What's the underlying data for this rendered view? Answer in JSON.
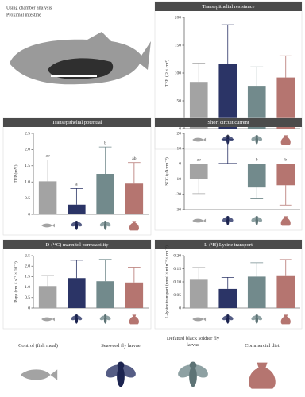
{
  "header": {
    "lines": [
      "Using chamber analysis",
      "Proximal intestine"
    ]
  },
  "legend": {
    "labels": [
      "Control (fish meal)",
      "Seaweed fly larvae",
      "Defatted black soldier fly larvae",
      "Commercial diet"
    ]
  },
  "chart_data": [
    {
      "type": "bar",
      "title": "Transepithelial resistance",
      "ylabel": "TER (Ω × cm²)",
      "categories": [
        null,
        null,
        null,
        null
      ],
      "values": [
        84,
        117,
        77,
        92
      ],
      "errors": [
        34,
        70,
        34,
        39
      ],
      "colors": [
        "#a3a3a3",
        "#2b3466",
        "#728a8c",
        "#b57570"
      ],
      "ylim": [
        0,
        200
      ],
      "yticks": [
        0,
        50,
        100,
        150,
        200
      ]
    },
    {
      "type": "bar",
      "title": "Transepithelial potential",
      "ylabel": "TEP (mV)",
      "categories": [
        null,
        null,
        null,
        null
      ],
      "values": [
        1.02,
        0.3,
        1.25,
        0.95
      ],
      "errors": [
        0.66,
        0.5,
        0.83,
        0.65
      ],
      "colors": [
        "#a3a3a3",
        "#2b3466",
        "#728a8c",
        "#b57570"
      ],
      "annotations": [
        "ab",
        "a",
        "b",
        "ab"
      ],
      "ylim": [
        0,
        2.5
      ],
      "yticks": [
        0,
        0.5,
        {
          "value": 1,
          "label": "1.0"
        },
        1.5,
        {
          "value": 2,
          "label": "2.0"
        },
        2.5
      ]
    },
    {
      "type": "bar",
      "title": "Short circuit current",
      "ylabel": "SCC (μA·cm⁻²)",
      "categories": [
        null,
        null,
        null,
        null
      ],
      "values": [
        -10,
        0.5,
        -15.5,
        -14
      ],
      "errors": [
        9.5,
        15.5,
        7.5,
        13
      ],
      "colors": [
        "#a3a3a3",
        "#2b3466",
        "#728a8c",
        "#b57570"
      ],
      "annotations": [
        "ab",
        "a",
        "b",
        "b"
      ],
      "ylim": [
        -30,
        20
      ],
      "yticks": [
        -30,
        -20,
        -10,
        0,
        10,
        20
      ]
    },
    {
      "type": "bar",
      "title": "D-(¹⁴C) mannitol permeability",
      "ylabel": "Papp (cm × s⁻¹ × 10⁻⁶)",
      "categories": [
        null,
        null,
        null,
        null
      ],
      "values": [
        1.05,
        1.43,
        1.28,
        1.22
      ],
      "errors": [
        0.5,
        0.85,
        1.04,
        0.73
      ],
      "colors": [
        "#a3a3a3",
        "#2b3466",
        "#728a8c",
        "#b57570"
      ],
      "ylim": [
        0,
        2.5
      ],
      "yticks": [
        0,
        0.5,
        {
          "value": 1,
          "label": "1.0"
        },
        1.5,
        {
          "value": 2,
          "label": "2.0"
        },
        2.5
      ]
    },
    {
      "type": "bar",
      "title": "L-(³H) Lysine transport",
      "ylabel": "L-lysine transport (nmol × min⁻¹ × cm⁻²)",
      "categories": [
        null,
        null,
        null,
        null
      ],
      "values": [
        0.108,
        0.073,
        0.12,
        0.125
      ],
      "errors": [
        0.047,
        0.044,
        0.053,
        0.06
      ],
      "colors": [
        "#a3a3a3",
        "#2b3466",
        "#728a8c",
        "#b57570"
      ],
      "ylim": [
        0,
        0.2
      ],
      "yticks": [
        0,
        0.05,
        {
          "value": 0.1,
          "label": "0.10"
        },
        0.15,
        {
          "value": 0.2,
          "label": "0.20"
        }
      ]
    }
  ]
}
